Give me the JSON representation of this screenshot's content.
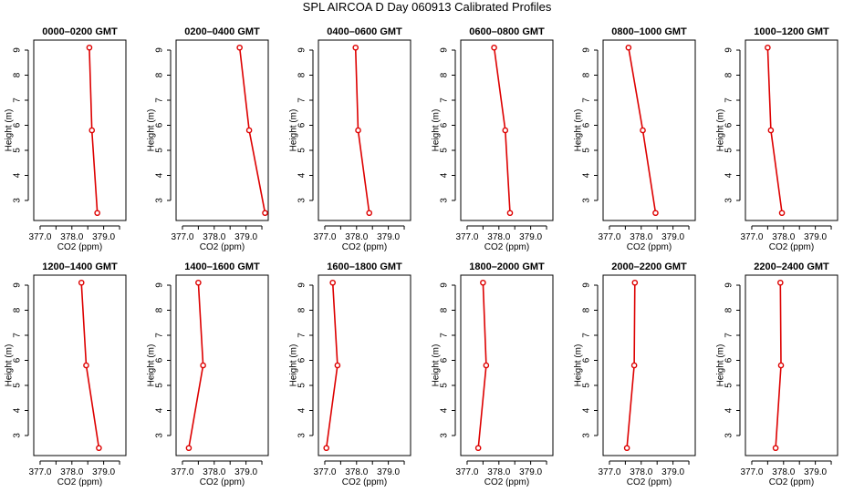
{
  "title": "SPL AIRCOA D  Day 060913  Calibrated Profiles",
  "colors": {
    "series": "#dd0000",
    "frame": "#000000",
    "text": "#000000",
    "background": "#ffffff"
  },
  "chart_data": [
    {
      "type": "line",
      "title": "0000–0200 GMT",
      "xlabel": "CO2 (ppm)",
      "ylabel": "Height (m)",
      "xlim": [
        376.8,
        379.7
      ],
      "ylim": [
        2.2,
        9.4
      ],
      "xticks": [
        377.0,
        377.5,
        378.0,
        378.5,
        379.0,
        379.5
      ],
      "xticklabels": [
        "377.0",
        "",
        "378.0",
        "",
        "379.0",
        ""
      ],
      "yticks": [
        3,
        4,
        5,
        6,
        7,
        8,
        9
      ],
      "yticklabels": [
        "3",
        "4",
        "5",
        "6",
        "7",
        "8",
        "9"
      ],
      "grid": false,
      "series": [
        {
          "x": [
            378.55,
            378.63,
            378.8
          ],
          "y": [
            9.1,
            5.8,
            2.5
          ]
        }
      ]
    },
    {
      "type": "line",
      "title": "0200–0400 GMT",
      "xlabel": "CO2 (ppm)",
      "ylabel": "Height (m)",
      "xlim": [
        376.8,
        379.7
      ],
      "ylim": [
        2.2,
        9.4
      ],
      "xticks": [
        377.0,
        377.5,
        378.0,
        378.5,
        379.0,
        379.5
      ],
      "xticklabels": [
        "377.0",
        "",
        "378.0",
        "",
        "379.0",
        ""
      ],
      "yticks": [
        3,
        4,
        5,
        6,
        7,
        8,
        9
      ],
      "yticklabels": [
        "3",
        "4",
        "5",
        "6",
        "7",
        "8",
        "9"
      ],
      "grid": false,
      "series": [
        {
          "x": [
            378.8,
            379.1,
            379.6
          ],
          "y": [
            9.1,
            5.8,
            2.5
          ]
        }
      ]
    },
    {
      "type": "line",
      "title": "0400–0600 GMT",
      "xlabel": "CO2 (ppm)",
      "ylabel": "Height (m)",
      "xlim": [
        376.8,
        379.7
      ],
      "ylim": [
        2.2,
        9.4
      ],
      "xticks": [
        377.0,
        377.5,
        378.0,
        378.5,
        379.0,
        379.5
      ],
      "xticklabels": [
        "377.0",
        "",
        "378.0",
        "",
        "379.0",
        ""
      ],
      "yticks": [
        3,
        4,
        5,
        6,
        7,
        8,
        9
      ],
      "yticklabels": [
        "3",
        "4",
        "5",
        "6",
        "7",
        "8",
        "9"
      ],
      "grid": false,
      "series": [
        {
          "x": [
            377.97,
            378.05,
            378.4
          ],
          "y": [
            9.1,
            5.8,
            2.5
          ]
        }
      ]
    },
    {
      "type": "line",
      "title": "0600–0800 GMT",
      "xlabel": "CO2 (ppm)",
      "ylabel": "Height (m)",
      "xlim": [
        376.8,
        379.7
      ],
      "ylim": [
        2.2,
        9.4
      ],
      "xticks": [
        377.0,
        377.5,
        378.0,
        378.5,
        379.0,
        379.5
      ],
      "xticklabels": [
        "377.0",
        "",
        "378.0",
        "",
        "379.0",
        ""
      ],
      "yticks": [
        3,
        4,
        5,
        6,
        7,
        8,
        9
      ],
      "yticklabels": [
        "3",
        "4",
        "5",
        "6",
        "7",
        "8",
        "9"
      ],
      "grid": false,
      "series": [
        {
          "x": [
            377.85,
            378.2,
            378.35
          ],
          "y": [
            9.1,
            5.8,
            2.5
          ]
        }
      ]
    },
    {
      "type": "line",
      "title": "0800–1000 GMT",
      "xlabel": "CO2 (ppm)",
      "ylabel": "Height (m)",
      "xlim": [
        376.8,
        379.7
      ],
      "ylim": [
        2.2,
        9.4
      ],
      "xticks": [
        377.0,
        377.5,
        378.0,
        378.5,
        379.0,
        379.5
      ],
      "xticklabels": [
        "377.0",
        "",
        "378.0",
        "",
        "379.0",
        ""
      ],
      "yticks": [
        3,
        4,
        5,
        6,
        7,
        8,
        9
      ],
      "yticklabels": [
        "3",
        "4",
        "5",
        "6",
        "7",
        "8",
        "9"
      ],
      "grid": false,
      "series": [
        {
          "x": [
            377.6,
            378.05,
            378.45
          ],
          "y": [
            9.1,
            5.8,
            2.5
          ]
        }
      ]
    },
    {
      "type": "line",
      "title": "1000–1200 GMT",
      "xlabel": "CO2 (ppm)",
      "ylabel": "Height (m)",
      "xlim": [
        376.8,
        379.7
      ],
      "ylim": [
        2.2,
        9.4
      ],
      "xticks": [
        377.0,
        377.5,
        378.0,
        378.5,
        379.0,
        379.5
      ],
      "xticklabels": [
        "377.0",
        "",
        "378.0",
        "",
        "379.0",
        ""
      ],
      "yticks": [
        3,
        4,
        5,
        6,
        7,
        8,
        9
      ],
      "yticklabels": [
        "3",
        "4",
        "5",
        "6",
        "7",
        "8",
        "9"
      ],
      "grid": false,
      "series": [
        {
          "x": [
            377.5,
            377.6,
            377.95
          ],
          "y": [
            9.1,
            5.8,
            2.5
          ]
        }
      ]
    },
    {
      "type": "line",
      "title": "1200–1400 GMT",
      "xlabel": "CO2 (ppm)",
      "ylabel": "Height (m)",
      "xlim": [
        376.8,
        379.7
      ],
      "ylim": [
        2.2,
        9.4
      ],
      "xticks": [
        377.0,
        377.5,
        378.0,
        378.5,
        379.0,
        379.5
      ],
      "xticklabels": [
        "377.0",
        "",
        "378.0",
        "",
        "379.0",
        ""
      ],
      "yticks": [
        3,
        4,
        5,
        6,
        7,
        8,
        9
      ],
      "yticklabels": [
        "3",
        "4",
        "5",
        "6",
        "7",
        "8",
        "9"
      ],
      "grid": false,
      "series": [
        {
          "x": [
            378.3,
            378.45,
            378.85
          ],
          "y": [
            9.1,
            5.8,
            2.5
          ]
        }
      ]
    },
    {
      "type": "line",
      "title": "1400–1600 GMT",
      "xlabel": "CO2 (ppm)",
      "ylabel": "Height (m)",
      "xlim": [
        376.8,
        379.7
      ],
      "ylim": [
        2.2,
        9.4
      ],
      "xticks": [
        377.0,
        377.5,
        378.0,
        378.5,
        379.0,
        379.5
      ],
      "xticklabels": [
        "377.0",
        "",
        "378.0",
        "",
        "379.0",
        ""
      ],
      "yticks": [
        3,
        4,
        5,
        6,
        7,
        8,
        9
      ],
      "yticklabels": [
        "3",
        "4",
        "5",
        "6",
        "7",
        "8",
        "9"
      ],
      "grid": false,
      "series": [
        {
          "x": [
            377.5,
            377.65,
            377.2
          ],
          "y": [
            9.1,
            5.8,
            2.5
          ]
        }
      ]
    },
    {
      "type": "line",
      "title": "1600–1800 GMT",
      "xlabel": "CO2 (ppm)",
      "ylabel": "Height (m)",
      "xlim": [
        376.8,
        379.7
      ],
      "ylim": [
        2.2,
        9.4
      ],
      "xticks": [
        377.0,
        377.5,
        378.0,
        378.5,
        379.0,
        379.5
      ],
      "xticklabels": [
        "377.0",
        "",
        "378.0",
        "",
        "379.0",
        ""
      ],
      "yticks": [
        3,
        4,
        5,
        6,
        7,
        8,
        9
      ],
      "yticklabels": [
        "3",
        "4",
        "5",
        "6",
        "7",
        "8",
        "9"
      ],
      "grid": false,
      "series": [
        {
          "x": [
            377.25,
            377.4,
            377.05
          ],
          "y": [
            9.1,
            5.8,
            2.5
          ]
        }
      ]
    },
    {
      "type": "line",
      "title": "1800–2000 GMT",
      "xlabel": "CO2 (ppm)",
      "ylabel": "Height (m)",
      "xlim": [
        376.8,
        379.7
      ],
      "ylim": [
        2.2,
        9.4
      ],
      "xticks": [
        377.0,
        377.5,
        378.0,
        378.5,
        379.0,
        379.5
      ],
      "xticklabels": [
        "377.0",
        "",
        "378.0",
        "",
        "379.0",
        ""
      ],
      "yticks": [
        3,
        4,
        5,
        6,
        7,
        8,
        9
      ],
      "yticklabels": [
        "3",
        "4",
        "5",
        "6",
        "7",
        "8",
        "9"
      ],
      "grid": false,
      "series": [
        {
          "x": [
            377.5,
            377.6,
            377.35
          ],
          "y": [
            9.1,
            5.8,
            2.5
          ]
        }
      ]
    },
    {
      "type": "line",
      "title": "2000–2200 GMT",
      "xlabel": "CO2 (ppm)",
      "ylabel": "Height (m)",
      "xlim": [
        376.8,
        379.7
      ],
      "ylim": [
        2.2,
        9.4
      ],
      "xticks": [
        377.0,
        377.5,
        378.0,
        378.5,
        379.0,
        379.5
      ],
      "xticklabels": [
        "377.0",
        "",
        "378.0",
        "",
        "379.0",
        ""
      ],
      "yticks": [
        3,
        4,
        5,
        6,
        7,
        8,
        9
      ],
      "yticklabels": [
        "3",
        "4",
        "5",
        "6",
        "7",
        "8",
        "9"
      ],
      "grid": false,
      "series": [
        {
          "x": [
            377.8,
            377.78,
            377.55
          ],
          "y": [
            9.1,
            5.8,
            2.5
          ]
        }
      ]
    },
    {
      "type": "line",
      "title": "2200–2400 GMT",
      "xlabel": "CO2 (ppm)",
      "ylabel": "Height (m)",
      "xlim": [
        376.8,
        379.7
      ],
      "ylim": [
        2.2,
        9.4
      ],
      "xticks": [
        377.0,
        377.5,
        378.0,
        378.5,
        379.0,
        379.5
      ],
      "xticklabels": [
        "377.0",
        "",
        "378.0",
        "",
        "379.0",
        ""
      ],
      "yticks": [
        3,
        4,
        5,
        6,
        7,
        8,
        9
      ],
      "yticklabels": [
        "3",
        "4",
        "5",
        "6",
        "7",
        "8",
        "9"
      ],
      "grid": false,
      "series": [
        {
          "x": [
            377.9,
            377.92,
            377.75
          ],
          "y": [
            9.1,
            5.8,
            2.5
          ]
        }
      ]
    }
  ]
}
